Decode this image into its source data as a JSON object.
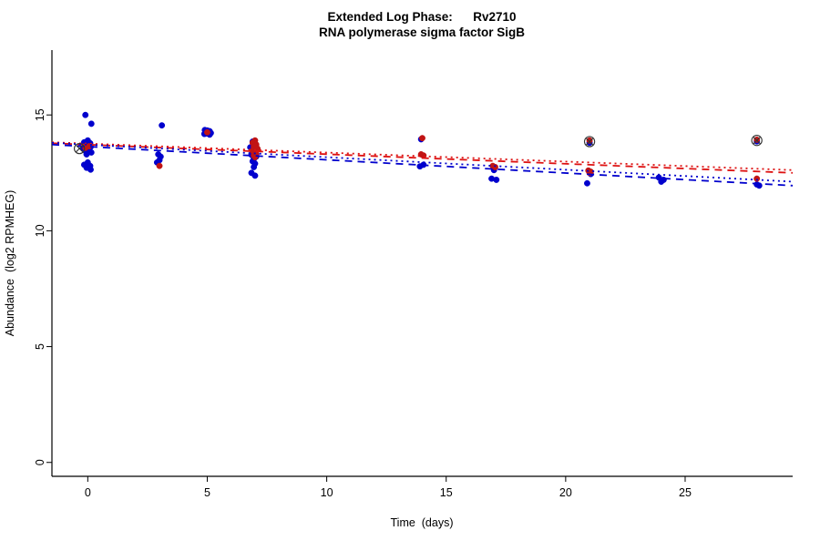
{
  "chart_data": {
    "type": "scatter",
    "title": "Extended Log Phase:      Rv2710",
    "subtitle": "RNA polymerase sigma factor SigB",
    "xlabel": "Time  (days)",
    "ylabel": "Abundance  (log2 RPMHEG)",
    "xlim": [
      -1.5,
      29.5
    ],
    "ylim": [
      -0.6,
      17.8
    ],
    "x_ticks": [
      0,
      5,
      10,
      15,
      20,
      25
    ],
    "y_ticks": [
      0,
      5,
      10,
      15
    ],
    "grid": false,
    "legend": "none",
    "point_radius": 3.2,
    "colors": {
      "blue_series": "#0000CD",
      "red_series": "#C11414",
      "marker": "#333333",
      "axis": "#000000"
    },
    "series": [
      {
        "name": "blue",
        "color": "#0000CD",
        "points": [
          [
            -0.1,
            15.0
          ],
          [
            0.15,
            14.62
          ],
          [
            0,
            13.9
          ],
          [
            -0.15,
            13.82
          ],
          [
            0.1,
            13.78
          ],
          [
            -0.05,
            13.7
          ],
          [
            0.12,
            13.62
          ],
          [
            -0.2,
            13.55
          ],
          [
            0.05,
            13.5
          ],
          [
            -0.1,
            13.45
          ],
          [
            0.15,
            13.38
          ],
          [
            -0.05,
            13.3
          ],
          [
            0,
            12.95
          ],
          [
            -0.15,
            12.85
          ],
          [
            0.1,
            12.8
          ],
          [
            -0.05,
            12.72
          ],
          [
            0.12,
            12.64
          ],
          [
            3.1,
            14.55
          ],
          [
            2.95,
            13.3
          ],
          [
            3.05,
            13.2
          ],
          [
            3.0,
            13.05
          ],
          [
            2.9,
            12.95
          ],
          [
            4.9,
            14.35
          ],
          [
            5.0,
            14.33
          ],
          [
            5.1,
            14.3
          ],
          [
            4.95,
            14.28
          ],
          [
            5.05,
            14.25
          ],
          [
            5.15,
            14.22
          ],
          [
            5.0,
            14.2
          ],
          [
            4.88,
            14.18
          ],
          [
            5.1,
            14.15
          ],
          [
            6.9,
            13.85
          ],
          [
            7.0,
            13.78
          ],
          [
            6.8,
            13.6
          ],
          [
            7.1,
            13.5
          ],
          [
            6.9,
            13.42
          ],
          [
            7.0,
            13.35
          ],
          [
            6.85,
            13.28
          ],
          [
            7.05,
            13.2
          ],
          [
            6.95,
            13.1
          ],
          [
            6.9,
            13.0
          ],
          [
            7.0,
            12.9
          ],
          [
            6.95,
            12.75
          ],
          [
            6.85,
            12.5
          ],
          [
            7.0,
            12.38
          ],
          [
            13.95,
            13.95
          ],
          [
            14.05,
            12.85
          ],
          [
            13.9,
            12.78
          ],
          [
            17.0,
            12.62
          ],
          [
            16.9,
            12.25
          ],
          [
            17.1,
            12.2
          ],
          [
            21.05,
            12.45
          ],
          [
            20.9,
            12.05
          ],
          [
            21.0,
            13.8
          ],
          [
            23.9,
            12.3
          ],
          [
            24.1,
            12.2
          ],
          [
            24.0,
            12.12
          ],
          [
            28.0,
            12.0
          ],
          [
            28.1,
            11.95
          ],
          [
            28.0,
            13.86
          ]
        ]
      },
      {
        "name": "red",
        "color": "#C11414",
        "points": [
          [
            0.05,
            13.65
          ],
          [
            -0.1,
            13.58
          ],
          [
            3.0,
            12.8
          ],
          [
            5.0,
            14.25
          ],
          [
            7.0,
            13.9
          ],
          [
            6.9,
            13.8
          ],
          [
            7.05,
            13.72
          ],
          [
            6.95,
            13.62
          ],
          [
            7.1,
            13.55
          ],
          [
            6.9,
            13.45
          ],
          [
            7.0,
            13.38
          ],
          [
            7.05,
            13.3
          ],
          [
            6.95,
            13.25
          ],
          [
            7.0,
            13.18
          ],
          [
            14.0,
            14.0
          ],
          [
            13.95,
            13.3
          ],
          [
            14.05,
            13.25
          ],
          [
            16.95,
            12.8
          ],
          [
            17.05,
            12.75
          ],
          [
            20.95,
            12.6
          ],
          [
            21.05,
            12.55
          ],
          [
            21.0,
            12.5
          ],
          [
            21.0,
            13.9
          ],
          [
            28.0,
            12.25
          ],
          [
            28.0,
            13.93
          ]
        ]
      }
    ],
    "trend_lines": [
      {
        "name": "red-dotted",
        "color": "#DD1111",
        "dash": "dotted",
        "from": [
          -1.5,
          13.82
        ],
        "to": [
          29.5,
          12.62
        ]
      },
      {
        "name": "red-dashed",
        "color": "#DD1111",
        "dash": "dashed",
        "from": [
          -1.5,
          13.78
        ],
        "to": [
          29.5,
          12.5
        ]
      },
      {
        "name": "blue-dotted",
        "color": "#0000CD",
        "dash": "dotted",
        "from": [
          -1.5,
          13.8
        ],
        "to": [
          29.5,
          12.12
        ]
      },
      {
        "name": "blue-dashed",
        "color": "#0000CD",
        "dash": "dashed",
        "from": [
          -1.5,
          13.72
        ],
        "to": [
          29.5,
          11.95
        ]
      }
    ],
    "outlier_markers": [
      {
        "x": -0.35,
        "y": 13.55
      },
      {
        "x": 21.0,
        "y": 13.85
      },
      {
        "x": 28.0,
        "y": 13.9
      }
    ]
  }
}
